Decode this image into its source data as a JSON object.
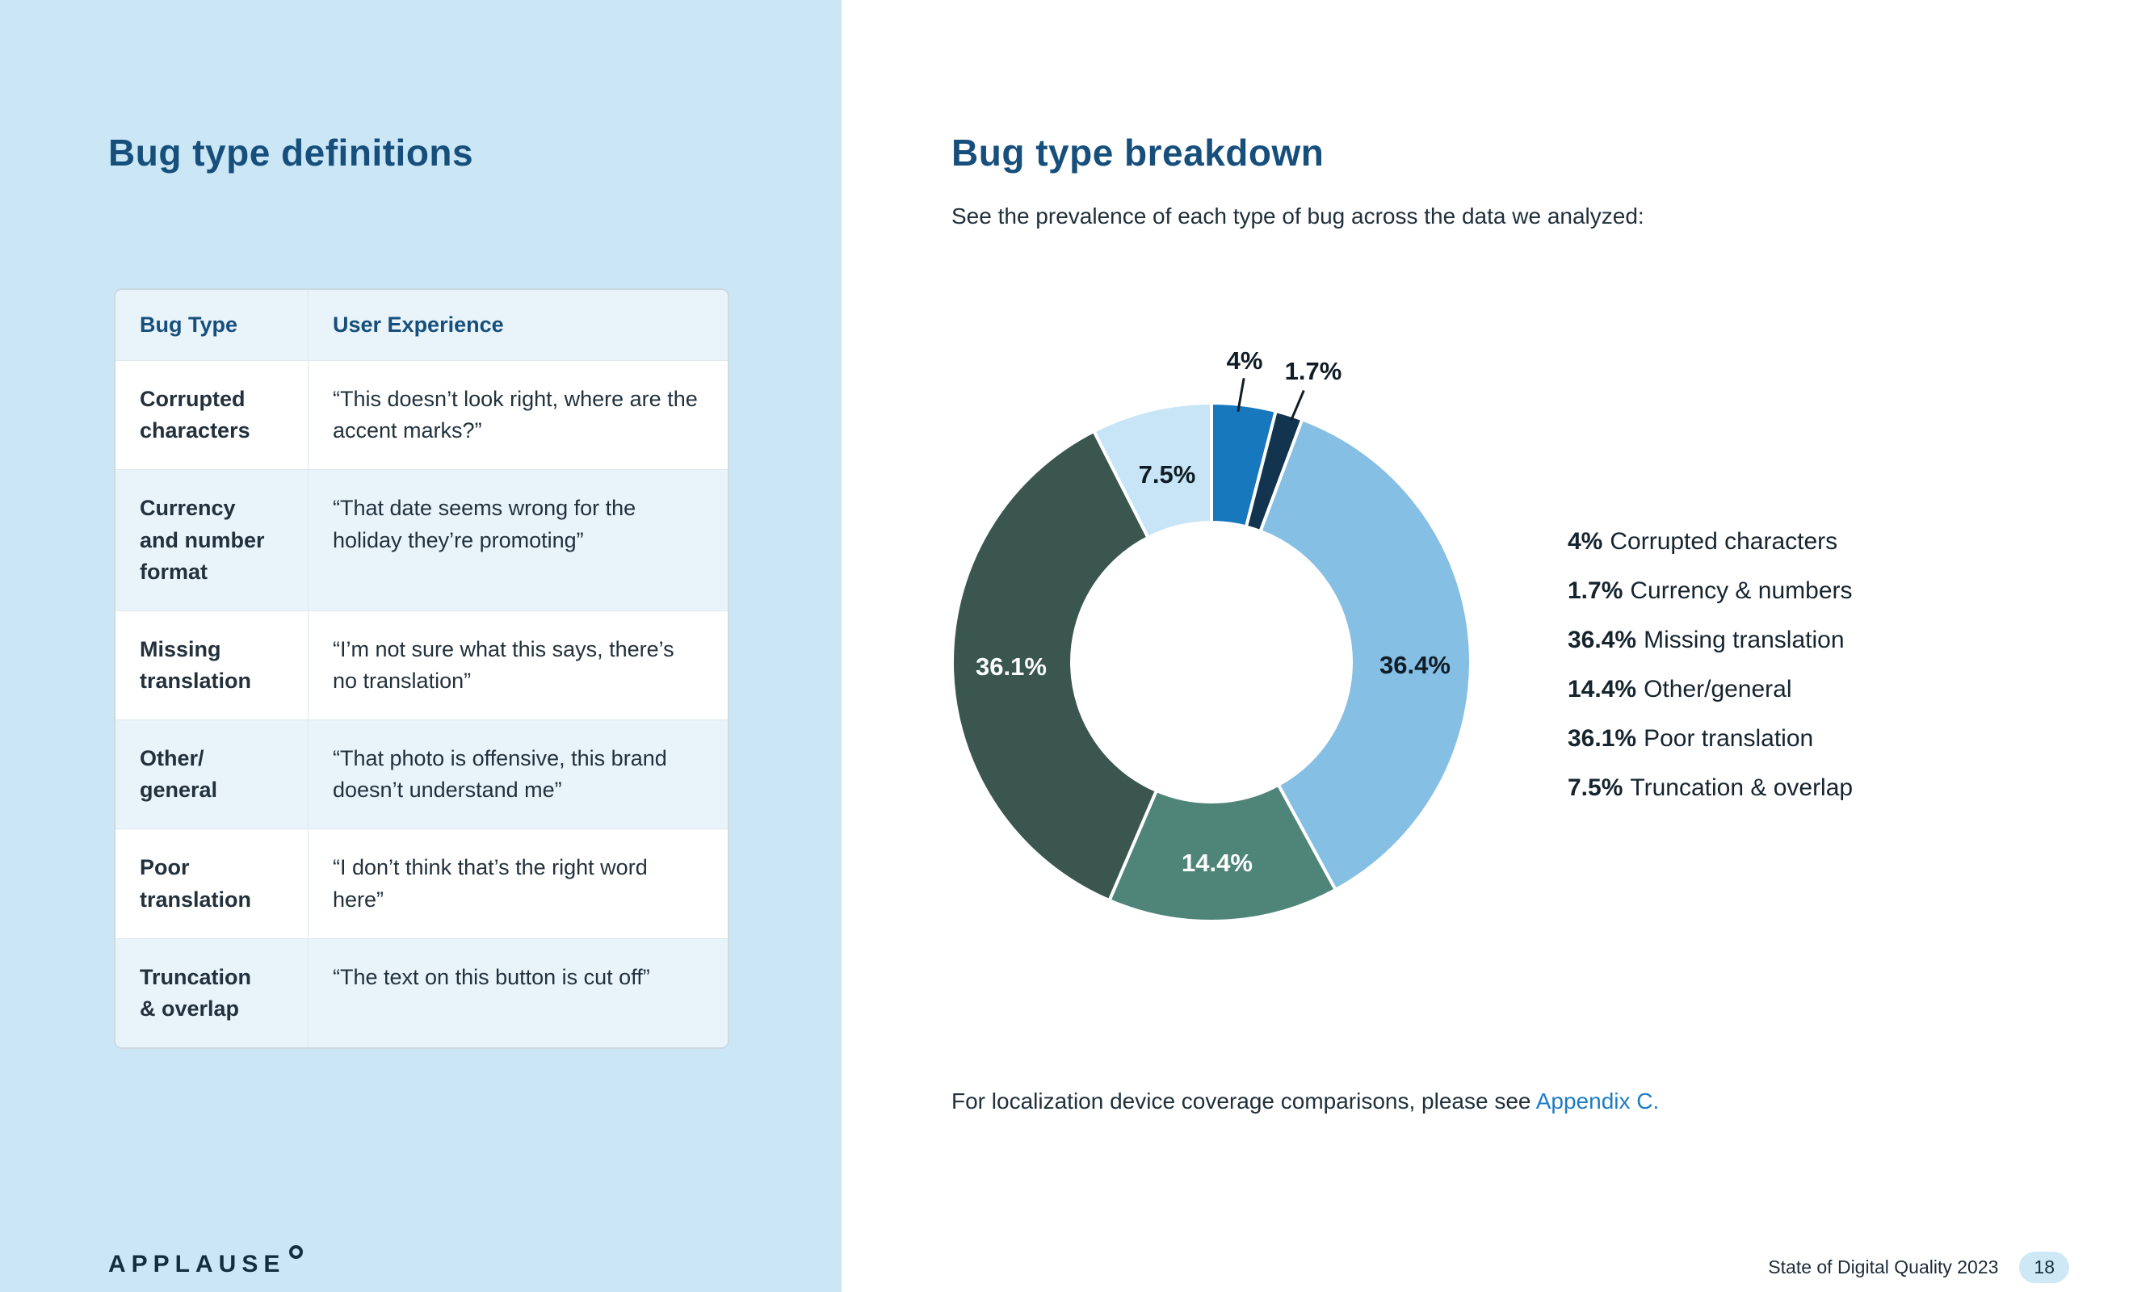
{
  "left": {
    "title": "Bug type definitions",
    "table": {
      "headers": [
        "Bug Type",
        "User Experience"
      ],
      "rows": [
        {
          "bug_type": "Corrupted\ncharacters",
          "user_experience": "“This doesn’t look right, where are the accent marks?”"
        },
        {
          "bug_type": "Currency\nand number\nformat",
          "user_experience": "“That date seems wrong for the holiday they’re promoting”"
        },
        {
          "bug_type": "Missing\ntranslation",
          "user_experience": "“I’m not sure what this says, there’s no translation”"
        },
        {
          "bug_type": "Other/\ngeneral",
          "user_experience": "“That photo is offensive, this brand doesn’t understand me”"
        },
        {
          "bug_type": "Poor\ntranslation",
          "user_experience": "“I don’t think that’s the right word here”"
        },
        {
          "bug_type": "Truncation\n& overlap",
          "user_experience": "“The text on this button is cut off”"
        }
      ]
    }
  },
  "right": {
    "title": "Bug type breakdown",
    "subtitle": "See the prevalence of each type of bug across the data we analyzed:",
    "note": {
      "text": "For localization device coverage comparisons, please see ",
      "link": "Appendix C."
    }
  },
  "chart_data": {
    "type": "pie",
    "variant": "donut",
    "start_angle_deg": 0,
    "clockwise": true,
    "slices": [
      {
        "label": "Corrupted characters",
        "value": 4,
        "display": "4%",
        "color": "#1878be"
      },
      {
        "label": "Currency & numbers",
        "value": 1.7,
        "display": "1.7%",
        "color": "#12344e"
      },
      {
        "label": "Missing translation",
        "value": 36.4,
        "display": "36.4%",
        "color": "#85bfe4"
      },
      {
        "label": "Other/general",
        "value": 14.4,
        "display": "14.4%",
        "color": "#4f8578"
      },
      {
        "label": "Poor translation",
        "value": 36.1,
        "display": "36.1%",
        "color": "#3a564e"
      },
      {
        "label": "Truncation & overlap",
        "value": 7.5,
        "display": "7.5%",
        "color": "#c7e5f6"
      }
    ],
    "legend": [
      {
        "pct": "4%",
        "label": "Corrupted characters"
      },
      {
        "pct": "1.7%",
        "label": "Currency & numbers"
      },
      {
        "pct": "36.4%",
        "label": "Missing translation"
      },
      {
        "pct": "14.4%",
        "label": "Other/general"
      },
      {
        "pct": "36.1%",
        "label": "Poor translation"
      },
      {
        "pct": "7.5%",
        "label": "Truncation & overlap"
      }
    ],
    "legend_position": "right"
  },
  "footer": {
    "brand": "APPLAUSE",
    "doc_title": "State of Digital Quality 2023",
    "page_number": "18"
  }
}
